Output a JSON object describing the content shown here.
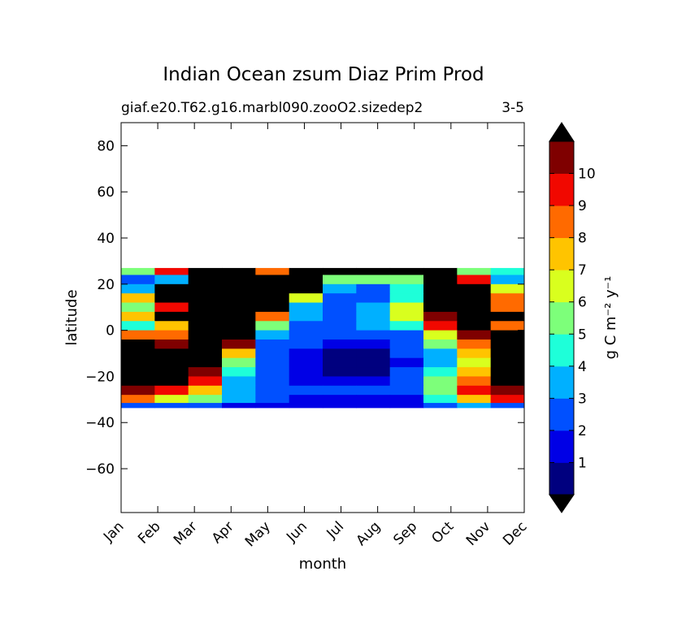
{
  "chart_data": {
    "type": "heatmap",
    "title": "Indian Ocean zsum Diaz Prim Prod",
    "subtitle_left": "giaf.e20.T62.g16.marbl090.zooO2.sizedep2",
    "subtitle_right": "3-5",
    "xlabel": "month",
    "ylabel": "latitude",
    "x_categories": [
      "Jan",
      "Feb",
      "Mar",
      "Apr",
      "May",
      "Jun",
      "Jul",
      "Aug",
      "Sep",
      "Oct",
      "Nov",
      "Dec"
    ],
    "yticks": [
      80,
      60,
      40,
      20,
      0,
      -20,
      -40,
      -60
    ],
    "ytick_labels": [
      "80",
      "60",
      "40",
      "20",
      "0",
      "−20",
      "−40",
      "−60"
    ],
    "ylim": [
      -79,
      90
    ],
    "data_lat_range": [
      -33.5,
      27
    ],
    "colorbar": {
      "label": "g C m⁻² y⁻¹",
      "levels": [
        0,
        1,
        2,
        3,
        4,
        5,
        6,
        7,
        8,
        9,
        10,
        11
      ],
      "tick_labels": [
        "1",
        "2",
        "3",
        "4",
        "5",
        "6",
        "7",
        "8",
        "9",
        "10"
      ],
      "colors": [
        "#00007f",
        "#0000e6",
        "#0050ff",
        "#00b0ff",
        "#1effd9",
        "#7dff7a",
        "#d9ff1e",
        "#ffc400",
        "#ff6a00",
        "#f10800",
        "#7f0000"
      ],
      "extend_low": "#000000",
      "extend_high": "#000000"
    },
    "description_note": "",
    "months": [
      1,
      2,
      3,
      4,
      5,
      6,
      7,
      8,
      9,
      10,
      11,
      12
    ],
    "latitudes": [
      26,
      22,
      18,
      14,
      10,
      6,
      2,
      -2,
      -6,
      -10,
      -14,
      -18,
      -22,
      -26,
      -30,
      -33
    ],
    "values": [
      [
        6,
        10,
        12,
        12,
        9,
        12,
        12,
        12,
        12,
        12,
        6,
        5
      ],
      [
        3,
        4,
        12,
        12,
        12,
        12,
        6,
        6,
        6,
        12,
        10,
        4
      ],
      [
        4,
        12,
        12,
        12,
        12,
        12,
        4,
        3,
        5,
        12,
        12,
        7
      ],
      [
        8,
        12,
        12,
        12,
        12,
        7,
        3,
        3,
        5,
        12,
        12,
        9
      ],
      [
        6,
        10,
        12,
        12,
        12,
        4,
        3,
        4,
        7,
        12,
        12,
        9
      ],
      [
        8,
        12,
        12,
        12,
        9,
        4,
        3,
        4,
        7,
        11,
        12,
        12
      ],
      [
        5,
        8,
        12,
        12,
        6,
        3,
        3,
        4,
        5,
        10,
        12,
        9
      ],
      [
        9,
        9,
        12,
        12,
        4,
        3,
        3,
        3,
        3,
        7,
        11,
        12
      ],
      [
        12,
        11,
        12,
        11,
        3,
        3,
        2,
        2,
        3,
        6,
        9,
        12
      ],
      [
        12,
        12,
        12,
        8,
        3,
        2,
        1,
        1,
        3,
        4,
        8,
        12
      ],
      [
        12,
        12,
        12,
        6,
        3,
        2,
        1,
        1,
        2,
        4,
        7,
        12
      ],
      [
        12,
        12,
        11,
        5,
        3,
        2,
        1,
        1,
        3,
        5,
        8,
        12
      ],
      [
        12,
        12,
        10,
        4,
        3,
        2,
        2,
        2,
        3,
        6,
        9,
        12
      ],
      [
        11,
        10,
        8,
        4,
        3,
        3,
        3,
        3,
        3,
        6,
        10,
        11
      ],
      [
        9,
        7,
        6,
        4,
        3,
        2,
        2,
        2,
        2,
        5,
        8,
        10
      ],
      [
        3,
        3,
        3,
        2,
        2,
        2,
        2,
        2,
        2,
        3,
        4,
        3
      ]
    ]
  }
}
